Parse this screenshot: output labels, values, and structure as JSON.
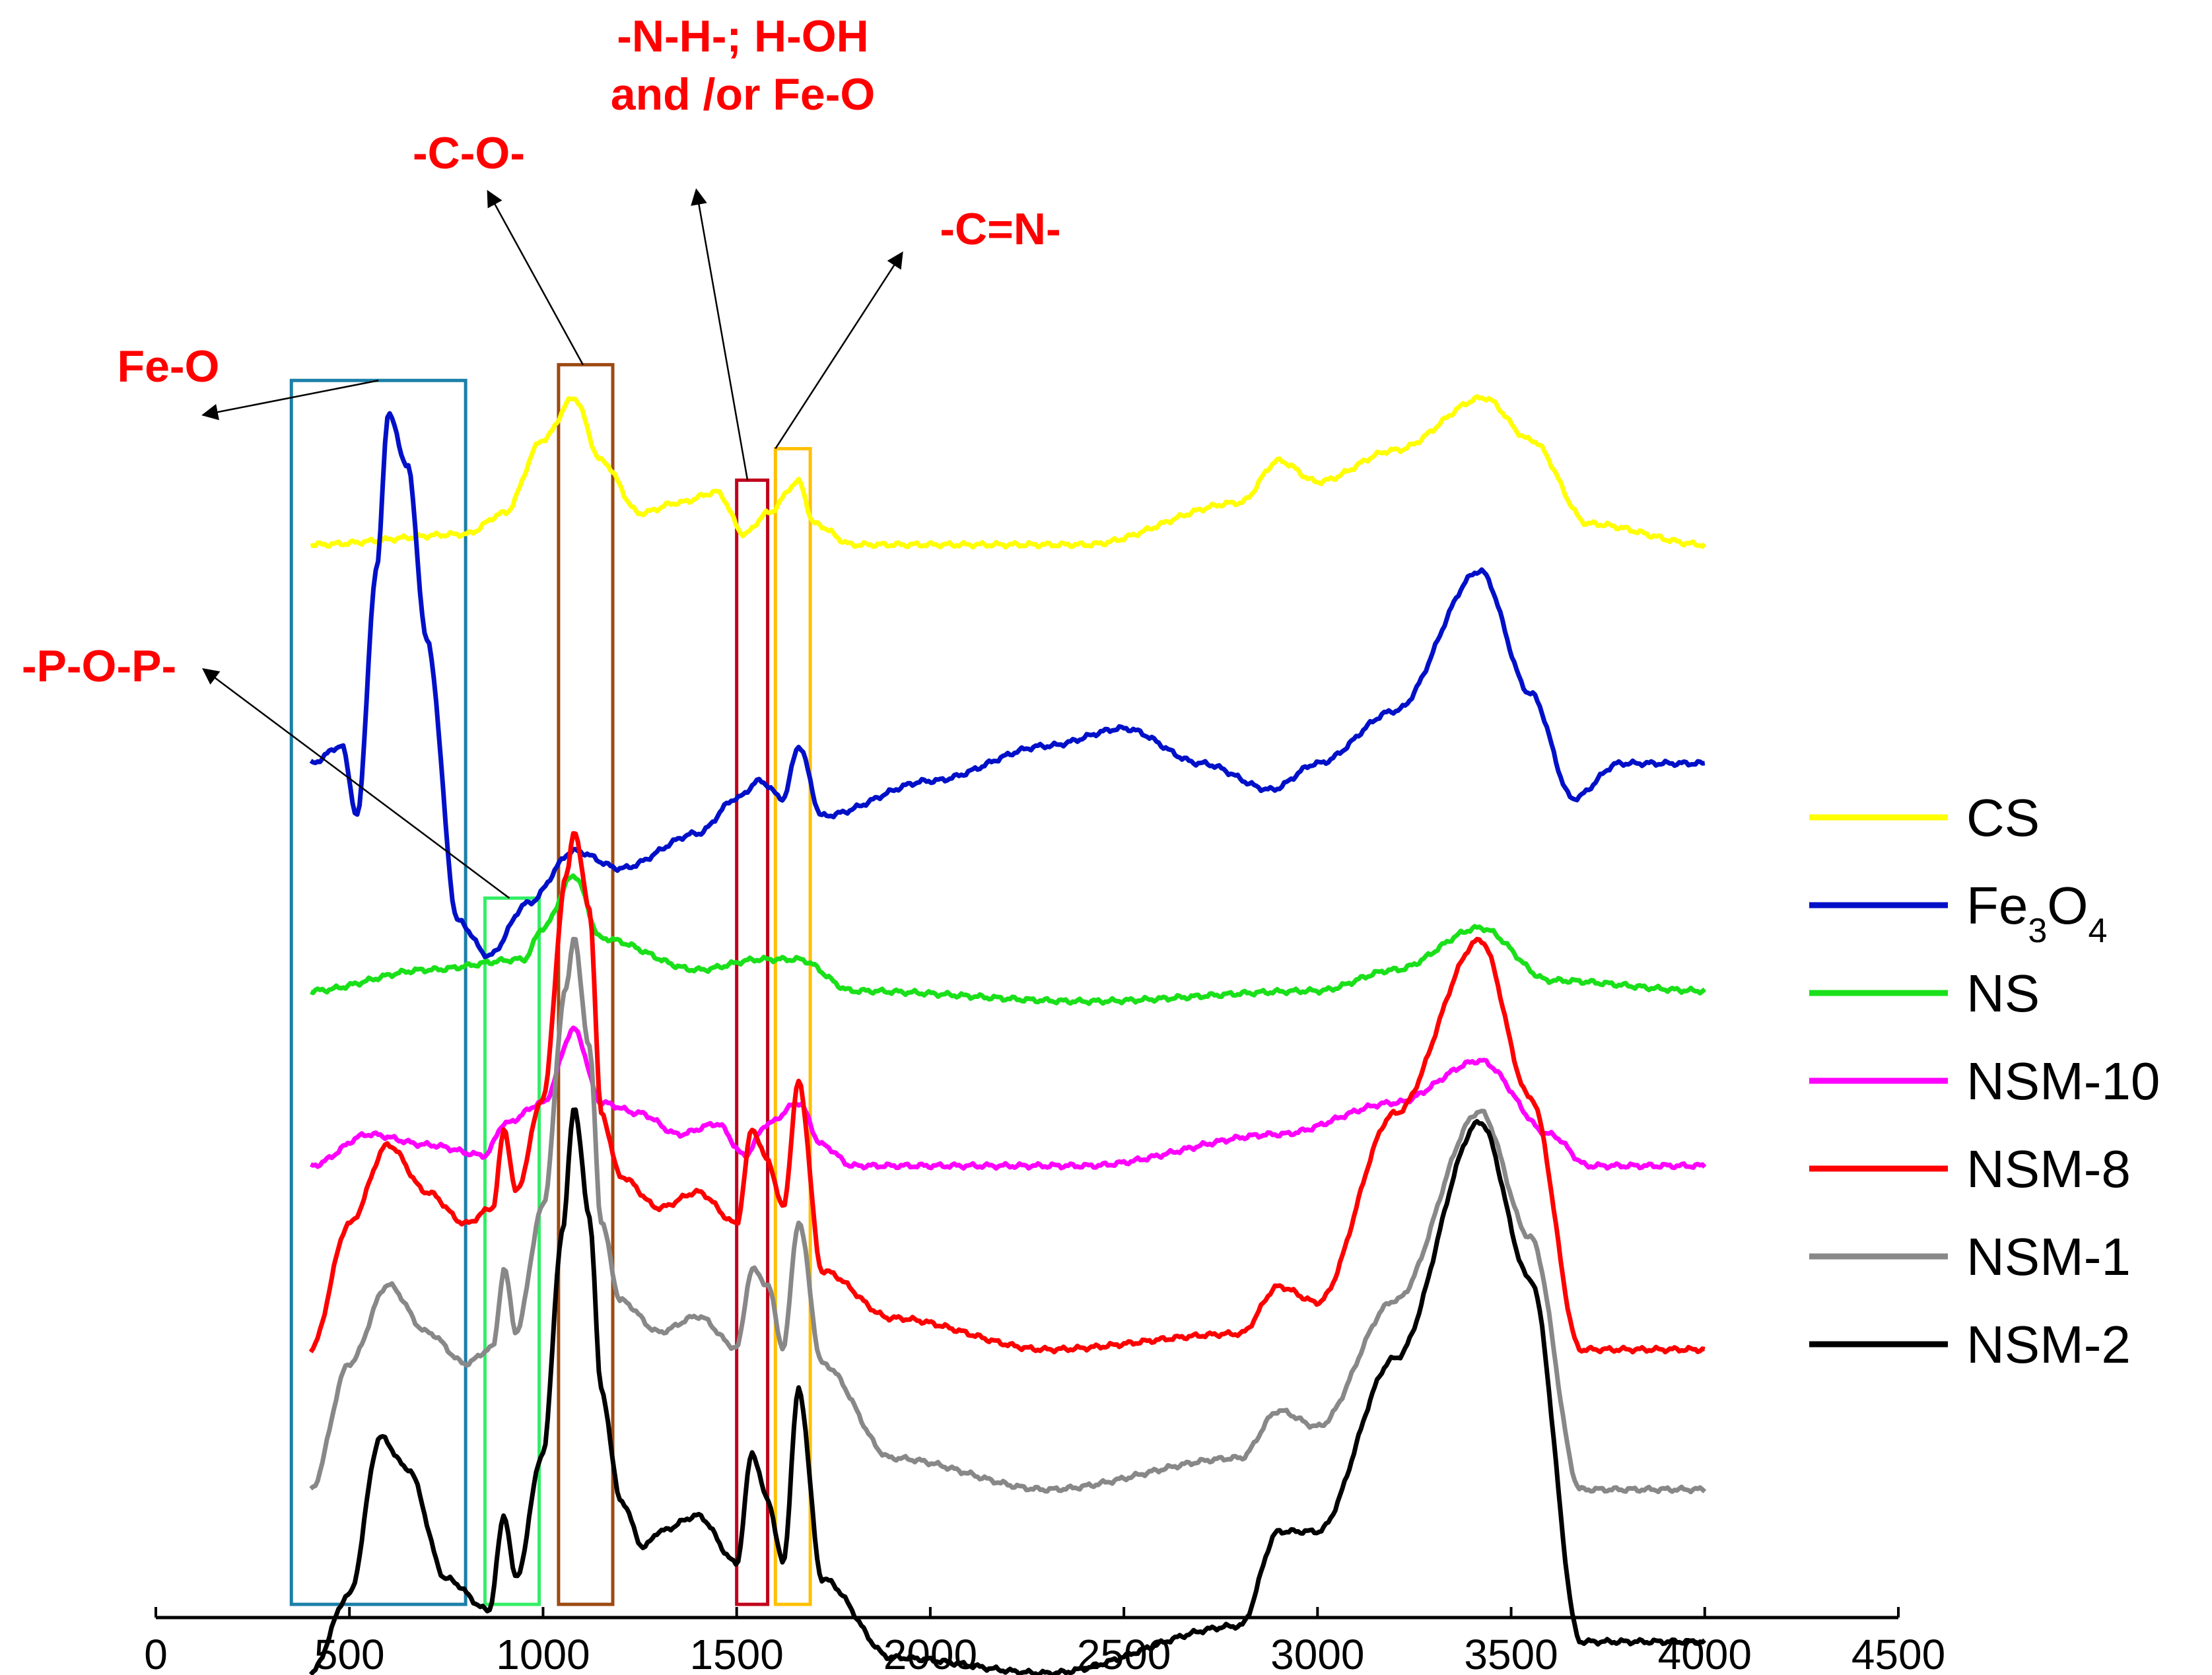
{
  "chart_data": {
    "type": "line",
    "title": "",
    "xlabel": "",
    "ylabel": "",
    "xlim": [
      0,
      4500
    ],
    "x_ticks": [
      "0",
      "500",
      "1000",
      "1500",
      "2000",
      "2500",
      "3000",
      "3500",
      "4000",
      "4500"
    ],
    "grid": false,
    "legend_position": "right",
    "series": [
      {
        "name": "CS",
        "legend_main": "CS",
        "color": "#ffff00",
        "offset": 6,
        "amp": 0.6,
        "points": [
          [
            400,
            0
          ],
          [
            800,
            0.1
          ],
          [
            900,
            0.3
          ],
          [
            1000,
            1
          ],
          [
            1080,
            1.4
          ],
          [
            1150,
            0.8
          ],
          [
            1250,
            0.3
          ],
          [
            1350,
            0.4
          ],
          [
            1450,
            0.5
          ],
          [
            1520,
            0.1
          ],
          [
            1580,
            0.3
          ],
          [
            1660,
            0.6
          ],
          [
            1700,
            0.2
          ],
          [
            1800,
            0
          ],
          [
            2000,
            0
          ],
          [
            2400,
            0
          ],
          [
            2800,
            0.4
          ],
          [
            2900,
            0.8
          ],
          [
            3000,
            0.6
          ],
          [
            3200,
            0.9
          ],
          [
            3430,
            1.4
          ],
          [
            3550,
            1.0
          ],
          [
            3700,
            0.2
          ],
          [
            4000,
            0
          ]
        ]
      },
      {
        "name": "Fe3O4",
        "legend_main": "Fe",
        "legend_sub1": "3",
        "legend_mid": "O",
        "legend_sub2": "4",
        "color": "#0010c8",
        "offset": 4.75,
        "amp": 1.0,
        "points": [
          [
            400,
            0
          ],
          [
            480,
            0.1
          ],
          [
            520,
            -0.3
          ],
          [
            570,
            1.1
          ],
          [
            600,
            2.0
          ],
          [
            650,
            1.7
          ],
          [
            700,
            0.7
          ],
          [
            780,
            -0.9
          ],
          [
            860,
            -1.1
          ],
          [
            960,
            -0.8
          ],
          [
            1080,
            -0.5
          ],
          [
            1200,
            -0.6
          ],
          [
            1400,
            -0.4
          ],
          [
            1500,
            -0.2
          ],
          [
            1560,
            -0.1
          ],
          [
            1620,
            -0.2
          ],
          [
            1660,
            0.1
          ],
          [
            1720,
            -0.3
          ],
          [
            2000,
            -0.1
          ],
          [
            2300,
            0.1
          ],
          [
            2500,
            0.2
          ],
          [
            2700,
            0.0
          ],
          [
            2880,
            -0.15
          ],
          [
            3000,
            0.0
          ],
          [
            3200,
            0.3
          ],
          [
            3420,
            1.1
          ],
          [
            3550,
            0.4
          ],
          [
            3660,
            -0.2
          ],
          [
            3780,
            0
          ],
          [
            4000,
            0
          ]
        ]
      },
      {
        "name": "NS",
        "legend_main": "NS",
        "color": "#1ae01a",
        "offset": 3.45,
        "amp": 0.6,
        "points": [
          [
            400,
            0
          ],
          [
            700,
            0.2
          ],
          [
            950,
            0.3
          ],
          [
            1000,
            0.6
          ],
          [
            1080,
            1.1
          ],
          [
            1150,
            0.5
          ],
          [
            1400,
            0.2
          ],
          [
            1560,
            0.3
          ],
          [
            1660,
            0.3
          ],
          [
            1800,
            0
          ],
          [
            2400,
            -0.1
          ],
          [
            3000,
            0
          ],
          [
            3200,
            0.2
          ],
          [
            3420,
            0.6
          ],
          [
            3600,
            0.1
          ],
          [
            4000,
            0
          ]
        ]
      },
      {
        "name": "NSM-10",
        "legend_main": "NSM-10",
        "color": "#ff00ff",
        "offset": 2.45,
        "amp": 0.6,
        "points": [
          [
            400,
            0
          ],
          [
            550,
            0.3
          ],
          [
            700,
            0.2
          ],
          [
            850,
            0.1
          ],
          [
            900,
            0.4
          ],
          [
            1000,
            0.6
          ],
          [
            1080,
            1.3
          ],
          [
            1150,
            0.6
          ],
          [
            1250,
            0.5
          ],
          [
            1350,
            0.3
          ],
          [
            1450,
            0.4
          ],
          [
            1520,
            0.1
          ],
          [
            1580,
            0.4
          ],
          [
            1660,
            0.6
          ],
          [
            1720,
            0.2
          ],
          [
            1800,
            0
          ],
          [
            2400,
            0.0
          ],
          [
            2900,
            0.3
          ],
          [
            3200,
            0.6
          ],
          [
            3420,
            1.0
          ],
          [
            3600,
            0.3
          ],
          [
            3700,
            0
          ],
          [
            4000,
            0
          ]
        ]
      },
      {
        "name": "NSM-8",
        "legend_main": "NSM-8",
        "color": "#ff0000",
        "offset": 1.4,
        "amp": 0.9,
        "points": [
          [
            400,
            0
          ],
          [
            500,
            0.8
          ],
          [
            600,
            1.3
          ],
          [
            700,
            1.0
          ],
          [
            800,
            0.8
          ],
          [
            870,
            0.9
          ],
          [
            900,
            1.4
          ],
          [
            930,
            1.0
          ],
          [
            1000,
            1.6
          ],
          [
            1060,
            3.0
          ],
          [
            1080,
            3.3
          ],
          [
            1120,
            2.8
          ],
          [
            1150,
            1.5
          ],
          [
            1200,
            1.1
          ],
          [
            1300,
            0.9
          ],
          [
            1400,
            1.0
          ],
          [
            1500,
            0.8
          ],
          [
            1540,
            1.4
          ],
          [
            1580,
            1.2
          ],
          [
            1620,
            0.9
          ],
          [
            1660,
            1.7
          ],
          [
            1720,
            0.5
          ],
          [
            1900,
            0.2
          ],
          [
            2300,
            0
          ],
          [
            2800,
            0.1
          ],
          [
            2900,
            0.4
          ],
          [
            3000,
            0.3
          ],
          [
            3200,
            1.5
          ],
          [
            3420,
            2.6
          ],
          [
            3550,
            1.6
          ],
          [
            3680,
            0
          ],
          [
            4000,
            0
          ]
        ]
      },
      {
        "name": "NSM-1",
        "legend_main": "NSM-1",
        "color": "#888888",
        "offset": 0.6,
        "amp": 0.9,
        "points": [
          [
            400,
            0
          ],
          [
            500,
            0.8
          ],
          [
            600,
            1.3
          ],
          [
            700,
            1.0
          ],
          [
            800,
            0.8
          ],
          [
            870,
            0.9
          ],
          [
            900,
            1.4
          ],
          [
            930,
            1.0
          ],
          [
            1000,
            1.8
          ],
          [
            1060,
            3.2
          ],
          [
            1080,
            3.5
          ],
          [
            1120,
            2.8
          ],
          [
            1150,
            1.7
          ],
          [
            1200,
            1.2
          ],
          [
            1300,
            1.0
          ],
          [
            1400,
            1.1
          ],
          [
            1500,
            0.9
          ],
          [
            1540,
            1.4
          ],
          [
            1580,
            1.3
          ],
          [
            1620,
            0.9
          ],
          [
            1660,
            1.7
          ],
          [
            1720,
            0.8
          ],
          [
            1900,
            0.2
          ],
          [
            2300,
            0
          ],
          [
            2800,
            0.2
          ],
          [
            2900,
            0.5
          ],
          [
            3000,
            0.4
          ],
          [
            3200,
            1.2
          ],
          [
            3420,
            2.4
          ],
          [
            3550,
            1.6
          ],
          [
            3680,
            0
          ],
          [
            4000,
            0
          ]
        ]
      },
      {
        "name": "NSM-2",
        "legend_main": "NSM-2",
        "color": "#000000",
        "offset": -0.45,
        "amp": 0.9,
        "points": [
          [
            400,
            0
          ],
          [
            500,
            0.5
          ],
          [
            580,
            1.5
          ],
          [
            650,
            1.3
          ],
          [
            750,
            0.6
          ],
          [
            860,
            0.4
          ],
          [
            900,
            1.0
          ],
          [
            930,
            0.6
          ],
          [
            1000,
            1.4
          ],
          [
            1050,
            2.8
          ],
          [
            1080,
            3.6
          ],
          [
            1120,
            2.9
          ],
          [
            1150,
            1.8
          ],
          [
            1200,
            1.1
          ],
          [
            1260,
            0.8
          ],
          [
            1300,
            0.9
          ],
          [
            1400,
            1.0
          ],
          [
            1500,
            0.7
          ],
          [
            1540,
            1.4
          ],
          [
            1580,
            1.1
          ],
          [
            1620,
            0.7
          ],
          [
            1660,
            1.8
          ],
          [
            1720,
            0.6
          ],
          [
            1900,
            0.1
          ],
          [
            2300,
            0.0
          ],
          [
            2800,
            0.3
          ],
          [
            2900,
            0.9
          ],
          [
            3000,
            0.9
          ],
          [
            3200,
            2.0
          ],
          [
            3420,
            3.5
          ],
          [
            3550,
            2.5
          ],
          [
            3680,
            0.2
          ],
          [
            4000,
            0.2
          ]
        ]
      }
    ],
    "band_boxes": [
      {
        "name": "fe-o-box",
        "x0": 350,
        "x1": 800,
        "color": "#1b7fa8",
        "top_series": "Fe3O4"
      },
      {
        "name": "p-o-p-box",
        "x0": 850,
        "x1": 990,
        "color": "#33ee66",
        "top_series": "NS"
      },
      {
        "name": "c-o-box",
        "x0": 1040,
        "x1": 1180,
        "color": "#9c4a12",
        "top_series": "CS"
      },
      {
        "name": "n-h-box",
        "x0": 1500,
        "x1": 1580,
        "color": "#c0001a",
        "top_series": "CS"
      },
      {
        "name": "c-n-box",
        "x0": 1600,
        "x1": 1690,
        "color": "#ffc000",
        "top_series": "CS"
      }
    ],
    "annotations": [
      {
        "name": "annot-fe-o",
        "lines": [
          "Fe-O"
        ]
      },
      {
        "name": "annot-p-o-p",
        "lines": [
          "-P-O-P-"
        ]
      },
      {
        "name": "annot-c-o",
        "lines": [
          "-C-O-"
        ]
      },
      {
        "name": "annot-n-h",
        "lines": [
          "-N-H-; H-OH",
          "and /or Fe-O"
        ]
      },
      {
        "name": "annot-c-n",
        "lines": [
          "-C=N-"
        ]
      }
    ],
    "annotation_color": "#ff0000"
  }
}
